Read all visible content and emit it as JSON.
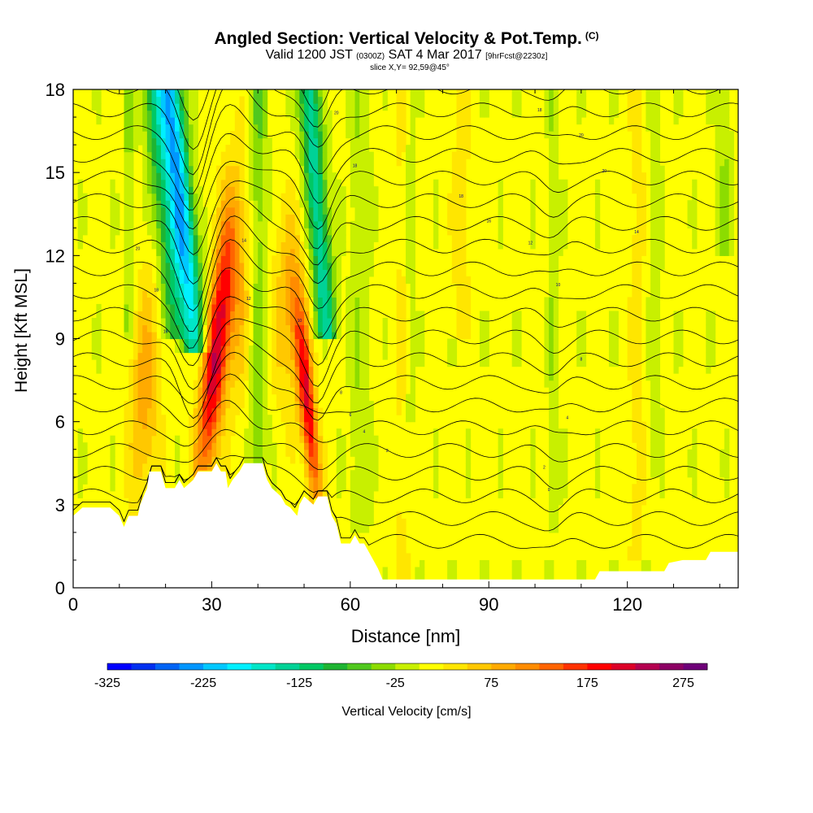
{
  "header": {
    "title": "Angled Section: Vertical Velocity & Pot.Temp.",
    "title_unit": "(C)",
    "valid_prefix": "Valid 1200 JST",
    "valid_utc": "(0300Z)",
    "valid_date": "SAT 4 Mar 2017",
    "valid_fcst": "[9hrFcst@2230z]",
    "slice": "slice X,Y= 92,59@45°"
  },
  "chart_data": {
    "type": "heatmap",
    "xlabel": "Distance [nm]",
    "ylabel": "Height [Kft MSL]",
    "xlim": [
      0,
      144
    ],
    "ylim": [
      0,
      18
    ],
    "x_ticks": [
      "0",
      "30",
      "60",
      "90",
      "120"
    ],
    "x_tick_values": [
      0,
      30,
      60,
      90,
      120
    ],
    "y_ticks": [
      "0",
      "3",
      "6",
      "9",
      "12",
      "15",
      "18"
    ],
    "y_tick_values": [
      0,
      3,
      6,
      9,
      12,
      15,
      18
    ],
    "colorbar": {
      "label": "Vertical Velocity [cm/s]",
      "tick_labels": [
        "-325",
        "-225",
        "-125",
        "-25",
        "75",
        "175",
        "275"
      ],
      "tick_values": [
        -325,
        -225,
        -125,
        -25,
        75,
        175,
        275
      ],
      "bin_edges": [
        -325,
        -300,
        -275,
        -250,
        -225,
        -200,
        -175,
        -150,
        -125,
        -100,
        -75,
        -50,
        -25,
        0,
        25,
        50,
        75,
        100,
        125,
        150,
        175,
        200,
        225,
        250,
        275,
        300
      ],
      "colors": [
        "#0000ff",
        "#0030f0",
        "#0064f5",
        "#0096ff",
        "#00c8ff",
        "#00f0ff",
        "#00e6c8",
        "#00d296",
        "#00c864",
        "#1eb432",
        "#50c81e",
        "#8cdc00",
        "#c8f000",
        "#ffff00",
        "#ffe600",
        "#ffc800",
        "#ffaa00",
        "#ff8c00",
        "#ff6400",
        "#ff3200",
        "#ff0000",
        "#dc0028",
        "#b40050",
        "#8c0064",
        "#6e0078"
      ]
    },
    "terrain_profile": [
      [
        0,
        2.6
      ],
      [
        2,
        2.9
      ],
      [
        8,
        2.9
      ],
      [
        10,
        2.6
      ],
      [
        11,
        2.2
      ],
      [
        12,
        2.6
      ],
      [
        14,
        2.6
      ],
      [
        14.5,
        3
      ],
      [
        16,
        3.6
      ],
      [
        16.5,
        4.2
      ],
      [
        19,
        4.2
      ],
      [
        20,
        3.6
      ],
      [
        22,
        3.6
      ],
      [
        23,
        3.9
      ],
      [
        24,
        3.6
      ],
      [
        26,
        3.9
      ],
      [
        27,
        4.2
      ],
      [
        30,
        4.2
      ],
      [
        31,
        4.5
      ],
      [
        32,
        4.2
      ],
      [
        33,
        4.2
      ],
      [
        33.5,
        3.6
      ],
      [
        34.5,
        3.9
      ],
      [
        36,
        4.2
      ],
      [
        37,
        4.5
      ],
      [
        41,
        4.5
      ],
      [
        42,
        3.9
      ],
      [
        43,
        3.6
      ],
      [
        45,
        3.3
      ],
      [
        46,
        3.0
      ],
      [
        47,
        2.9
      ],
      [
        48.5,
        2.6
      ],
      [
        49,
        3.0
      ],
      [
        50,
        3.3
      ],
      [
        52,
        3.0
      ],
      [
        53,
        3.3
      ],
      [
        55,
        3.3
      ],
      [
        56,
        2.6
      ],
      [
        57,
        2.3
      ],
      [
        58,
        1.6
      ],
      [
        59,
        1.6
      ],
      [
        60,
        1.6
      ],
      [
        61,
        1.9
      ],
      [
        62,
        1.6
      ],
      [
        63,
        1.6
      ],
      [
        64,
        1.3
      ],
      [
        65,
        1.0
      ],
      [
        66,
        0.7
      ],
      [
        67,
        0.3
      ],
      [
        71,
        0.3
      ],
      [
        113,
        0.3
      ],
      [
        114,
        0.6
      ],
      [
        128,
        0.6
      ],
      [
        129,
        0.9
      ],
      [
        132,
        1.0
      ],
      [
        137,
        1.0
      ],
      [
        138,
        1.3
      ],
      [
        144,
        1.3
      ]
    ],
    "vertical_velocity_features": [
      {
        "name": "downdraft",
        "x_range": [
          19,
          27
        ],
        "z_range": [
          8.5,
          18
        ],
        "min_value": -225
      },
      {
        "name": "updraft",
        "x_range": [
          27,
          35
        ],
        "z_range": [
          4.5,
          13
        ],
        "max_value": 200
      },
      {
        "name": "downdraft",
        "x_range": [
          51,
          58
        ],
        "z_range": [
          9,
          18
        ],
        "min_value": -125
      },
      {
        "name": "updraft",
        "x_range": [
          48,
          53
        ],
        "z_range": [
          3.2,
          11
        ],
        "max_value": 200
      },
      {
        "name": "updraft",
        "x_range": [
          11,
          20
        ],
        "z_range": [
          4.2,
          12
        ],
        "max_value": 100
      }
    ],
    "isentrope_labels": [
      "20",
      "18",
      "16",
      "14",
      "12",
      "10",
      "8",
      "6",
      "4",
      "2",
      "0",
      "-2"
    ],
    "grid": false,
    "legend": "bottom"
  }
}
